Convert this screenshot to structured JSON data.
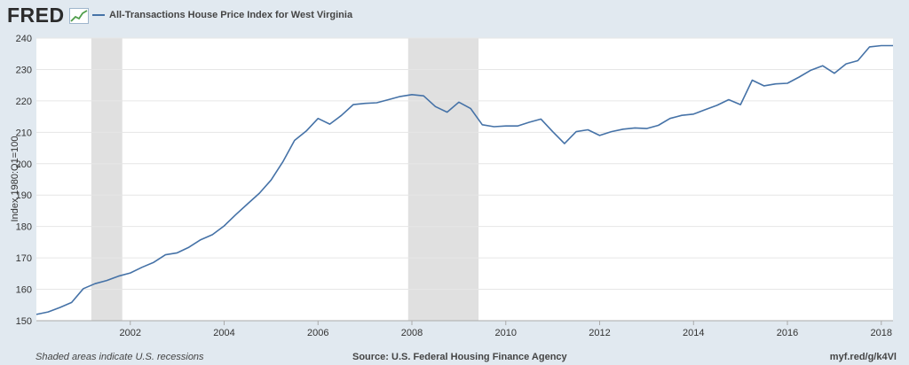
{
  "header": {
    "logo_text": "FRED",
    "logo_icon": "trend-chart-icon",
    "legend_label": "All-Transactions House Price Index for West Virginia"
  },
  "footer": {
    "note": "Shaded areas indicate U.S. recessions",
    "source": "Source: U.S. Federal Housing Finance Agency",
    "link": "myf.red/g/k4Vl"
  },
  "colors": {
    "background": "#e1e9f0",
    "plot_background": "#ffffff",
    "series_line": "#4572a7",
    "recession_shade": "#e0e0e0",
    "grid": "#e6e6e6"
  },
  "chart_data": {
    "type": "line",
    "title": "",
    "xlabel": "",
    "ylabel": "Index 1980:Q1=100",
    "ylim": [
      150,
      240
    ],
    "xlim": [
      2000.0,
      2018.25
    ],
    "grid": true,
    "y_ticks": [
      150,
      160,
      170,
      180,
      190,
      200,
      210,
      220,
      230,
      240
    ],
    "x_ticks": [
      2002,
      2004,
      2006,
      2008,
      2010,
      2012,
      2014,
      2016,
      2018
    ],
    "recessions": [
      [
        2001.17,
        2001.83
      ],
      [
        2007.92,
        2009.42
      ]
    ],
    "series": [
      {
        "name": "All-Transactions House Price Index for West Virginia",
        "x": [
          2000.0,
          2000.25,
          2000.5,
          2000.75,
          2001.0,
          2001.25,
          2001.5,
          2001.75,
          2002.0,
          2002.25,
          2002.5,
          2002.75,
          2003.0,
          2003.25,
          2003.5,
          2003.75,
          2004.0,
          2004.25,
          2004.5,
          2004.75,
          2005.0,
          2005.25,
          2005.5,
          2005.75,
          2006.0,
          2006.25,
          2006.5,
          2006.75,
          2007.0,
          2007.25,
          2007.5,
          2007.75,
          2008.0,
          2008.25,
          2008.5,
          2008.75,
          2009.0,
          2009.25,
          2009.5,
          2009.75,
          2010.0,
          2010.25,
          2010.5,
          2010.75,
          2011.0,
          2011.25,
          2011.5,
          2011.75,
          2012.0,
          2012.25,
          2012.5,
          2012.75,
          2013.0,
          2013.25,
          2013.5,
          2013.75,
          2014.0,
          2014.25,
          2014.5,
          2014.75,
          2015.0,
          2015.25,
          2015.5,
          2015.75,
          2016.0,
          2016.25,
          2016.5,
          2016.75,
          2017.0,
          2017.25,
          2017.5,
          2017.75,
          2018.0,
          2018.25
        ],
        "values": [
          152.0,
          152.8,
          154.2,
          155.8,
          160.2,
          161.8,
          162.8,
          164.2,
          165.2,
          167.0,
          168.6,
          171.0,
          171.6,
          173.4,
          175.8,
          177.4,
          180.2,
          183.8,
          187.2,
          190.6,
          194.8,
          200.6,
          207.4,
          210.4,
          214.4,
          212.6,
          215.4,
          218.8,
          219.2,
          219.4,
          220.4,
          221.4,
          222.0,
          221.6,
          218.2,
          216.4,
          219.6,
          217.6,
          212.4,
          211.8,
          212.0,
          212.0,
          213.2,
          214.2,
          210.2,
          206.4,
          210.2,
          210.8,
          209.0,
          210.2,
          211.0,
          211.4,
          211.2,
          212.2,
          214.4,
          215.4,
          215.8,
          217.2,
          218.6,
          220.4,
          218.8,
          226.6,
          224.8,
          225.4,
          225.6,
          227.6,
          229.8,
          231.2,
          228.8,
          231.8,
          232.8,
          237.2,
          237.6,
          237.6
        ]
      }
    ]
  }
}
